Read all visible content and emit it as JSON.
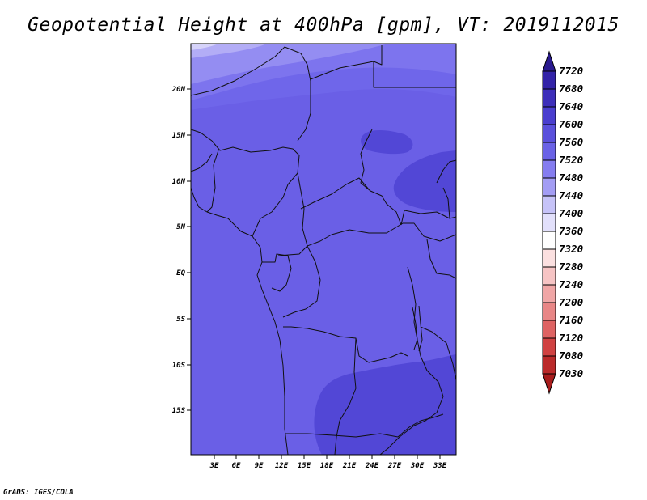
{
  "title": "Geopotential Height at 400hPa [gpm], VT: 2019112015",
  "credit": "GrADS: IGES/COLA",
  "map": {
    "lat_labels": [
      "20N",
      "15N",
      "10N",
      "5N",
      "EQ",
      "5S",
      "10S",
      "15S"
    ],
    "lon_labels": [
      "3E",
      "6E",
      "9E",
      "12E",
      "15E",
      "18E",
      "21E",
      "24E",
      "27E",
      "30E",
      "33E"
    ],
    "base_color": "#6a5fe6"
  },
  "colorbar": {
    "labels": [
      "7720",
      "7680",
      "7640",
      "7600",
      "7560",
      "7520",
      "7480",
      "7440",
      "7400",
      "7360",
      "7320",
      "7280",
      "7240",
      "7200",
      "7160",
      "7120",
      "7080",
      "7030"
    ],
    "colors": [
      "#2a1a90",
      "#3323a8",
      "#3d2eba",
      "#4a3ecf",
      "#5a50dc",
      "#6a62e6",
      "#857df0",
      "#a39df4",
      "#c6c3f8",
      "#e2e0fb",
      "#ffffff",
      "#fbe0e0",
      "#f6c4c4",
      "#f0a6a6",
      "#e88686",
      "#de6363",
      "#d04242",
      "#bb2a2a",
      "#a81c1c"
    ]
  }
}
